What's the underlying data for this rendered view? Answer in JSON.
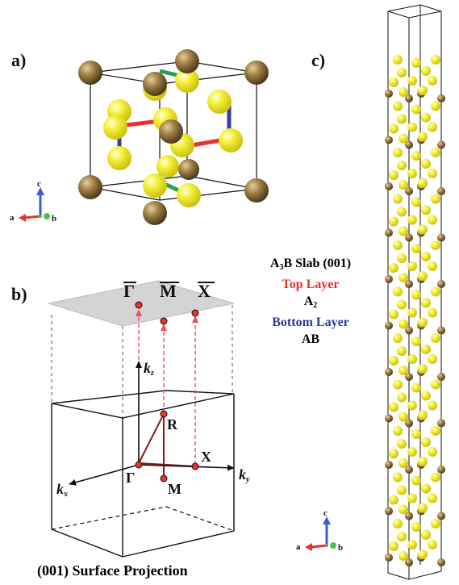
{
  "panels": {
    "a": "a)",
    "b": "b)",
    "c": "c)"
  },
  "axes": {
    "a": "a",
    "b": "b",
    "c": "c"
  },
  "bz_points": {
    "gamma_bar": "Γ",
    "m_bar": "M",
    "x_bar": "X",
    "gamma": "Γ",
    "m": "M",
    "r": "R",
    "x": "X"
  },
  "kaxes": {
    "kx_main": "k",
    "kx_sub": "x",
    "ky_main": "k",
    "ky_sub": "y",
    "kz_main": "k",
    "kz_sub": "z"
  },
  "slab": {
    "title_pre": "A",
    "title_sub": "3",
    "title_post": "B Slab (001)",
    "top_label": "Top Layer",
    "top_pre": "A",
    "top_sub": "2",
    "bottom_label": "Bottom Layer",
    "bottom_text": "AB"
  },
  "caption": "(001) Surface Projection",
  "colors": {
    "top": "#e8322a",
    "bottom": "#2a3a9a",
    "bond_green": "#2aa050",
    "projection": "#e8505a",
    "gold": "#8a6d3b",
    "yellow": "#f2ee30"
  }
}
